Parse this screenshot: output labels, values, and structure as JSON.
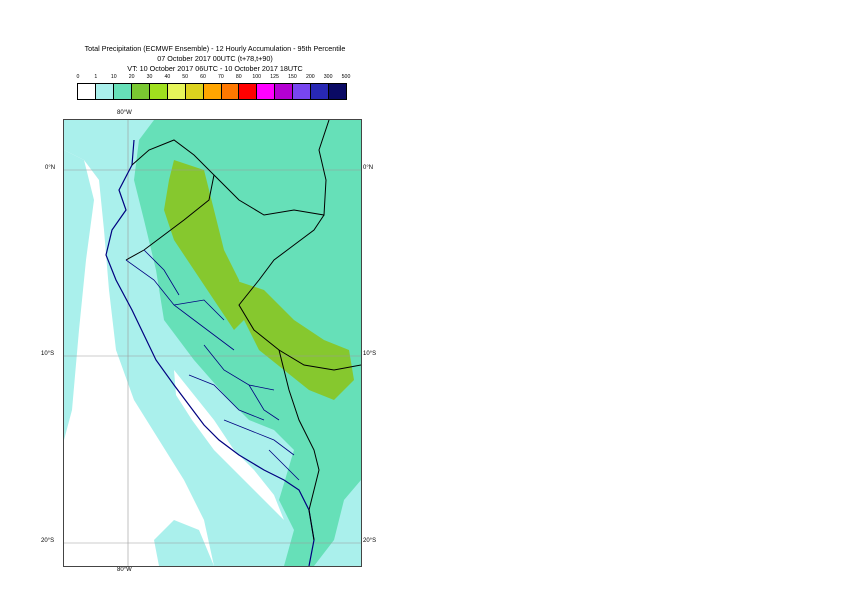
{
  "title": {
    "line1": "Total Precipitation (ECMWF Ensemble) - 12 Hourly Accumulation - 95th Percentile",
    "line2": "07 October 2017 00UTC (t+78,t+90)",
    "line3": "VT: 10 October 2017 06UTC - 10 October 2017 18UTC"
  },
  "legend": {
    "thresholds": [
      "0",
      "1",
      "10",
      "20",
      "30",
      "40",
      "50",
      "60",
      "70",
      "80",
      "100",
      "125",
      "150",
      "200",
      "300",
      "500"
    ],
    "colors": [
      "#ffffff",
      "#aaf0ec",
      "#66e0b8",
      "#7ac832",
      "#a0e01e",
      "#e6f55a",
      "#dcd21e",
      "#ffa500",
      "#ff7800",
      "#ff0000",
      "#ff00ff",
      "#b400d2",
      "#7846f0",
      "#2828b4",
      "#0a0a64"
    ]
  },
  "map": {
    "colors": {
      "ocean": "#ffffff",
      "light": "#aaf0ec",
      "mid": "#66e0b8",
      "green": "#86c82e",
      "coast": "#000080",
      "border": "#000000",
      "grid": "#999999"
    },
    "lon_labels": {
      "top": "80°W",
      "bottom": "80°W"
    },
    "lat_labels": [
      {
        "left": "0°N",
        "right": "0°N"
      },
      {
        "left": "10°S",
        "right": "10°S"
      },
      {
        "left": "20°S",
        "right": "20°S"
      }
    ]
  }
}
